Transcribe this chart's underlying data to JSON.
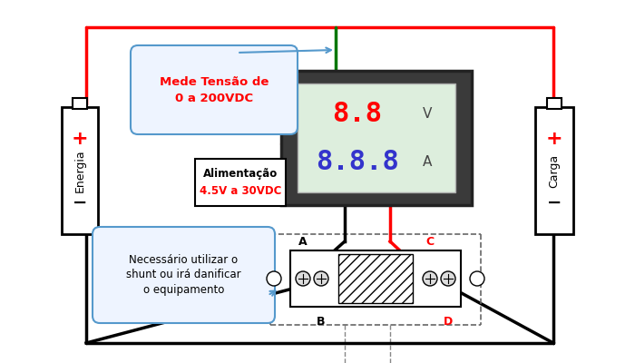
{
  "bg_color": "#ffffff",
  "red_color": "#ff0000",
  "blue_color": "#3333cc",
  "green_color": "#007700",
  "black": "#000000",
  "dark_gray": "#3a3a3a",
  "bubble_fill": "#eef4ff",
  "bubble_border": "#5599cc",
  "bubble1_text": "Mede Tensão de\n0 a 200VDC",
  "bubble3_text": "Necessário utilizar o\nshunt ou irá danificar\no equipamento",
  "alim_line1": "Alimentação",
  "alim_line2": "4.5V a 30VDC",
  "energia_label": "Energia",
  "carga_label": "Carga",
  "v_text": "8.8",
  "a_text": "8.8.8",
  "v_unit": "V",
  "a_unit": "A",
  "label_A": "A",
  "label_B": "B",
  "label_C": "C",
  "label_D": "D"
}
